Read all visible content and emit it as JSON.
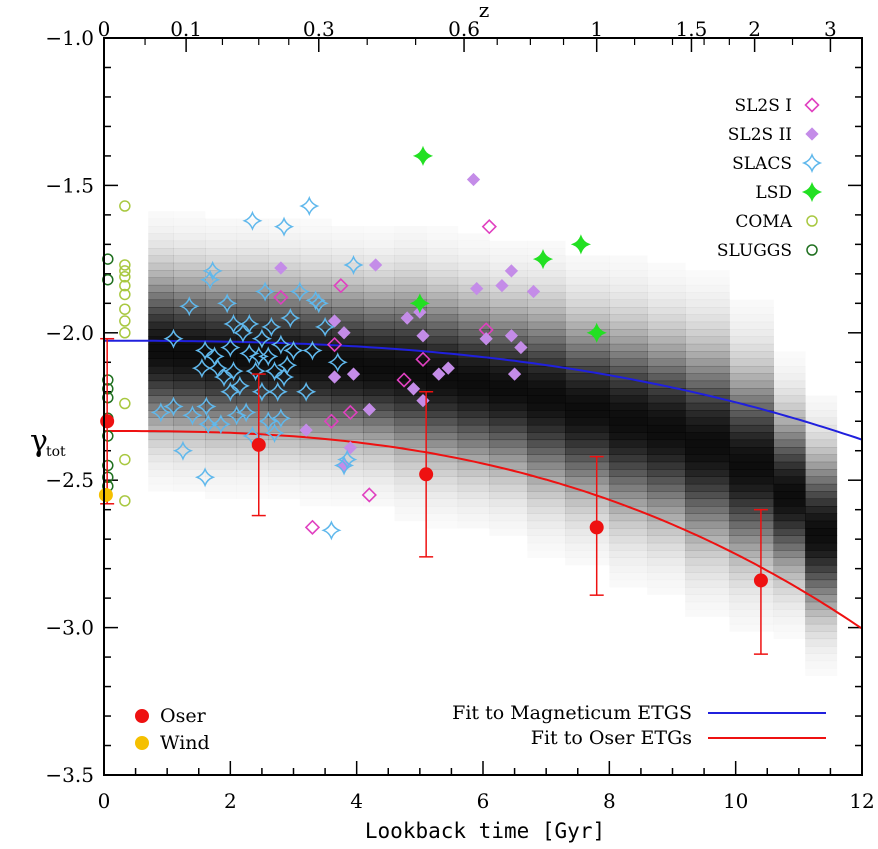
{
  "chart_data": {
    "type": "scatter",
    "xlabel": "Lookback time [Gyr]",
    "ylabel": "γ",
    "ylabel_sub": "tot",
    "top_label": "z",
    "xlim": [
      0,
      12
    ],
    "ylim": [
      -3.5,
      -1.0
    ],
    "x_ticks": [
      "0",
      "2",
      "4",
      "6",
      "8",
      "10",
      "12"
    ],
    "y_ticks": [
      "−1.0",
      "−1.5",
      "−2.0",
      "−2.5",
      "−3.0",
      "−3.5"
    ],
    "top_ticks": [
      {
        "label": "0",
        "z": 0
      },
      {
        "label": "0.1",
        "z": 0.1
      },
      {
        "label": "0.3",
        "z": 0.3
      },
      {
        "label": "0.6",
        "z": 0.6
      },
      {
        "label": "1",
        "z": 1
      },
      {
        "label": "1.5",
        "z": 1.5
      },
      {
        "label": "2",
        "z": 2
      },
      {
        "label": "3",
        "z": 3
      }
    ],
    "density_bins": [
      {
        "t0": 0.7,
        "t1": 1.1,
        "center": -2.06,
        "sigma": 0.17
      },
      {
        "t0": 1.1,
        "t1": 1.6,
        "center": -2.07,
        "sigma": 0.17
      },
      {
        "t0": 1.6,
        "t1": 2.1,
        "center": -2.08,
        "sigma": 0.17
      },
      {
        "t0": 2.1,
        "t1": 2.6,
        "center": -2.08,
        "sigma": 0.17
      },
      {
        "t0": 2.6,
        "t1": 3.1,
        "center": -2.09,
        "sigma": 0.17
      },
      {
        "t0": 3.1,
        "t1": 3.6,
        "center": -2.1,
        "sigma": 0.17
      },
      {
        "t0": 3.6,
        "t1": 4.1,
        "center": -2.11,
        "sigma": 0.17
      },
      {
        "t0": 4.1,
        "t1": 4.6,
        "center": -2.12,
        "sigma": 0.17
      },
      {
        "t0": 4.6,
        "t1": 5.1,
        "center": -2.13,
        "sigma": 0.18
      },
      {
        "t0": 5.1,
        "t1": 5.6,
        "center": -2.15,
        "sigma": 0.18
      },
      {
        "t0": 5.6,
        "t1": 6.1,
        "center": -2.17,
        "sigma": 0.18
      },
      {
        "t0": 6.1,
        "t1": 6.7,
        "center": -2.19,
        "sigma": 0.18
      },
      {
        "t0": 6.7,
        "t1": 7.3,
        "center": -2.22,
        "sigma": 0.19
      },
      {
        "t0": 7.3,
        "t1": 8.0,
        "center": -2.26,
        "sigma": 0.19
      },
      {
        "t0": 8.0,
        "t1": 8.6,
        "center": -2.3,
        "sigma": 0.2
      },
      {
        "t0": 8.6,
        "t1": 9.2,
        "center": -2.33,
        "sigma": 0.2
      },
      {
        "t0": 9.2,
        "t1": 9.9,
        "center": -2.38,
        "sigma": 0.21
      },
      {
        "t0": 9.9,
        "t1": 10.6,
        "center": -2.45,
        "sigma": 0.2
      },
      {
        "t0": 10.6,
        "t1": 11.1,
        "center": -2.55,
        "sigma": 0.17
      },
      {
        "t0": 11.1,
        "t1": 11.6,
        "center": -2.68,
        "sigma": 0.17
      }
    ],
    "series": [
      {
        "name": "SL2S I",
        "marker": "diamond-open",
        "color": "#e040c0",
        "points": [
          [
            2.8,
            -1.88
          ],
          [
            3.65,
            -2.04
          ],
          [
            3.75,
            -1.84
          ],
          [
            3.6,
            -2.3
          ],
          [
            3.9,
            -2.27
          ],
          [
            3.3,
            -2.66
          ],
          [
            4.2,
            -2.55
          ],
          [
            4.75,
            -2.16
          ],
          [
            5.05,
            -2.09
          ],
          [
            6.05,
            -1.99
          ],
          [
            6.1,
            -1.64
          ]
        ]
      },
      {
        "name": "SL2S II",
        "marker": "diamond-filled",
        "color": "#c48ce8",
        "points": [
          [
            2.8,
            -1.78
          ],
          [
            3.2,
            -2.33
          ],
          [
            3.65,
            -1.96
          ],
          [
            3.65,
            -2.15
          ],
          [
            3.8,
            -2.0
          ],
          [
            3.8,
            -2.45
          ],
          [
            3.9,
            -2.39
          ],
          [
            3.95,
            -2.14
          ],
          [
            4.2,
            -2.26
          ],
          [
            4.3,
            -1.77
          ],
          [
            4.8,
            -1.95
          ],
          [
            4.9,
            -2.19
          ],
          [
            5.0,
            -1.93
          ],
          [
            5.05,
            -2.01
          ],
          [
            5.05,
            -2.23
          ],
          [
            5.3,
            -2.14
          ],
          [
            5.45,
            -2.12
          ],
          [
            5.85,
            -1.48
          ],
          [
            5.9,
            -1.85
          ],
          [
            6.05,
            -2.02
          ],
          [
            6.3,
            -1.84
          ],
          [
            6.45,
            -2.01
          ],
          [
            6.45,
            -1.79
          ],
          [
            6.5,
            -2.14
          ],
          [
            6.6,
            -2.05
          ],
          [
            6.8,
            -1.86
          ]
        ]
      },
      {
        "name": "SLACS",
        "marker": "star4-open",
        "color": "#60b8ec",
        "points": [
          [
            0.9,
            -2.27
          ],
          [
            1.1,
            -2.02
          ],
          [
            1.1,
            -2.25
          ],
          [
            1.25,
            -2.4
          ],
          [
            1.35,
            -1.91
          ],
          [
            1.4,
            -2.28
          ],
          [
            1.55,
            -2.12
          ],
          [
            1.6,
            -2.49
          ],
          [
            1.6,
            -2.06
          ],
          [
            1.62,
            -2.25
          ],
          [
            1.65,
            -2.31
          ],
          [
            1.68,
            -1.82
          ],
          [
            1.72,
            -1.79
          ],
          [
            1.75,
            -2.08
          ],
          [
            1.8,
            -2.12
          ],
          [
            1.85,
            -2.31
          ],
          [
            1.9,
            -2.15
          ],
          [
            1.95,
            -1.9
          ],
          [
            2.0,
            -2.2
          ],
          [
            2.0,
            -2.05
          ],
          [
            2.05,
            -2.13
          ],
          [
            2.05,
            -1.97
          ],
          [
            2.1,
            -2.28
          ],
          [
            2.15,
            -2.18
          ],
          [
            2.2,
            -2.0
          ],
          [
            2.25,
            -2.27
          ],
          [
            2.3,
            -2.07
          ],
          [
            2.3,
            -1.97
          ],
          [
            2.35,
            -2.35
          ],
          [
            2.4,
            -2.13
          ],
          [
            2.35,
            -1.62
          ],
          [
            2.45,
            -2.08
          ],
          [
            2.5,
            -2.2
          ],
          [
            2.5,
            -2.02
          ],
          [
            2.55,
            -1.86
          ],
          [
            2.6,
            -2.3
          ],
          [
            2.6,
            -2.08
          ],
          [
            2.65,
            -1.98
          ],
          [
            2.7,
            -2.13
          ],
          [
            2.7,
            -2.34
          ],
          [
            2.75,
            -2.2
          ],
          [
            2.8,
            -2.04
          ],
          [
            2.8,
            -2.29
          ],
          [
            2.85,
            -1.64
          ],
          [
            2.85,
            -2.15
          ],
          [
            2.9,
            -2.11
          ],
          [
            2.95,
            -1.95
          ],
          [
            3.0,
            -2.06
          ],
          [
            3.1,
            -1.86
          ],
          [
            3.2,
            -2.2
          ],
          [
            3.25,
            -1.57
          ],
          [
            3.3,
            -2.06
          ],
          [
            3.35,
            -1.89
          ],
          [
            3.4,
            -1.9
          ],
          [
            3.5,
            -1.98
          ],
          [
            3.6,
            -2.67
          ],
          [
            3.7,
            -2.1
          ],
          [
            3.8,
            -2.45
          ],
          [
            3.85,
            -2.43
          ],
          [
            3.95,
            -1.77
          ]
        ]
      },
      {
        "name": "LSD",
        "marker": "star4-filled",
        "color": "#22e022",
        "points": [
          [
            5.05,
            -1.4
          ],
          [
            5.0,
            -1.9
          ],
          [
            6.95,
            -1.75
          ],
          [
            7.55,
            -1.7
          ],
          [
            7.8,
            -2.0
          ]
        ]
      },
      {
        "name": "COMA",
        "marker": "circle-open",
        "color": "#a8c840",
        "points": [
          [
            0.33,
            -1.57
          ],
          [
            0.33,
            -1.77
          ],
          [
            0.33,
            -1.79
          ],
          [
            0.33,
            -1.81
          ],
          [
            0.33,
            -1.84
          ],
          [
            0.33,
            -1.87
          ],
          [
            0.33,
            -1.92
          ],
          [
            0.33,
            -1.96
          ],
          [
            0.33,
            -2.0
          ],
          [
            0.33,
            -2.24
          ],
          [
            0.33,
            -2.43
          ],
          [
            0.33,
            -2.57
          ]
        ]
      },
      {
        "name": "SLUGGS",
        "marker": "circle-open",
        "color": "#207020",
        "points": [
          [
            0.06,
            -1.75
          ],
          [
            0.06,
            -1.82
          ],
          [
            0.06,
            -2.16
          ],
          [
            0.06,
            -2.19
          ],
          [
            0.06,
            -2.22
          ],
          [
            0.06,
            -2.29
          ],
          [
            0.06,
            -2.35
          ],
          [
            0.06,
            -2.45
          ],
          [
            0.06,
            -2.49
          ],
          [
            0.06,
            -2.52
          ]
        ]
      }
    ],
    "oser": {
      "name": "Oser",
      "color": "#ee1111",
      "points": [
        {
          "x": 0.05,
          "y": -2.3,
          "lo": -2.58,
          "hi": -2.02
        },
        {
          "x": 2.45,
          "y": -2.38,
          "lo": -2.62,
          "hi": -2.14
        },
        {
          "x": 5.1,
          "y": -2.48,
          "lo": -2.76,
          "hi": -2.2
        },
        {
          "x": 7.8,
          "y": -2.66,
          "lo": -2.89,
          "hi": -2.42
        },
        {
          "x": 10.4,
          "y": -2.84,
          "lo": -3.09,
          "hi": -2.6
        }
      ]
    },
    "wind": {
      "name": "Wind",
      "color": "#f5c000",
      "points": [
        {
          "x": 0.03,
          "y": -2.55
        }
      ]
    },
    "fits": [
      {
        "name": "Fit to Magneticum ETGS",
        "color": "#2020dd",
        "a": -2.027,
        "b": -0.1735,
        "c0": -0.3355
      },
      {
        "name": "Fit to Oser ETGs",
        "color": "#ee1111",
        "a": -2.333,
        "b": -0.286,
        "c0": -0.6705
      }
    ]
  }
}
